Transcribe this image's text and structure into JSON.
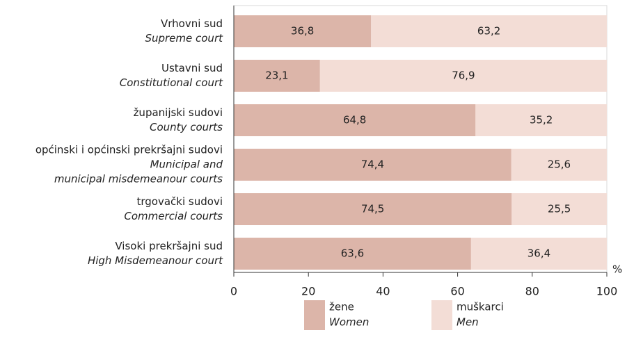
{
  "chart_data": {
    "type": "stacked_barh",
    "categories": [
      [
        "Vrhovni sud",
        "Supreme court"
      ],
      [
        "Ustavni sud",
        "Constitutional court"
      ],
      [
        "županijski sudovi",
        "County courts"
      ],
      [
        "općinski i općinski prekršajni sudovi",
        "Municipal and",
        "municipal misdemeanour courts"
      ],
      [
        "trgovački sudovi",
        "Commercial courts"
      ],
      [
        "Visoki prekršajni sud",
        "High Misdemeanour court"
      ]
    ],
    "series": [
      {
        "name": [
          "žene",
          "Women"
        ],
        "color": "#dcb5a9",
        "values": [
          36.8,
          23.1,
          64.8,
          74.4,
          74.5,
          63.6
        ],
        "value_labels": [
          "36,8",
          "23,1",
          "64,8",
          "74,4",
          "74,5",
          "63,6"
        ]
      },
      {
        "name": [
          "muškarci",
          "Men"
        ],
        "color": "#f3ddd6",
        "values": [
          63.2,
          76.9,
          35.2,
          25.6,
          25.5,
          36.4
        ],
        "value_labels": [
          "63,2",
          "76,9",
          "35,2",
          "25,6",
          "25,5",
          "36,4"
        ]
      }
    ],
    "xlabel": "%",
    "xlim": [
      0,
      100
    ],
    "xticks": [
      0,
      20,
      40,
      60,
      80,
      100
    ]
  }
}
